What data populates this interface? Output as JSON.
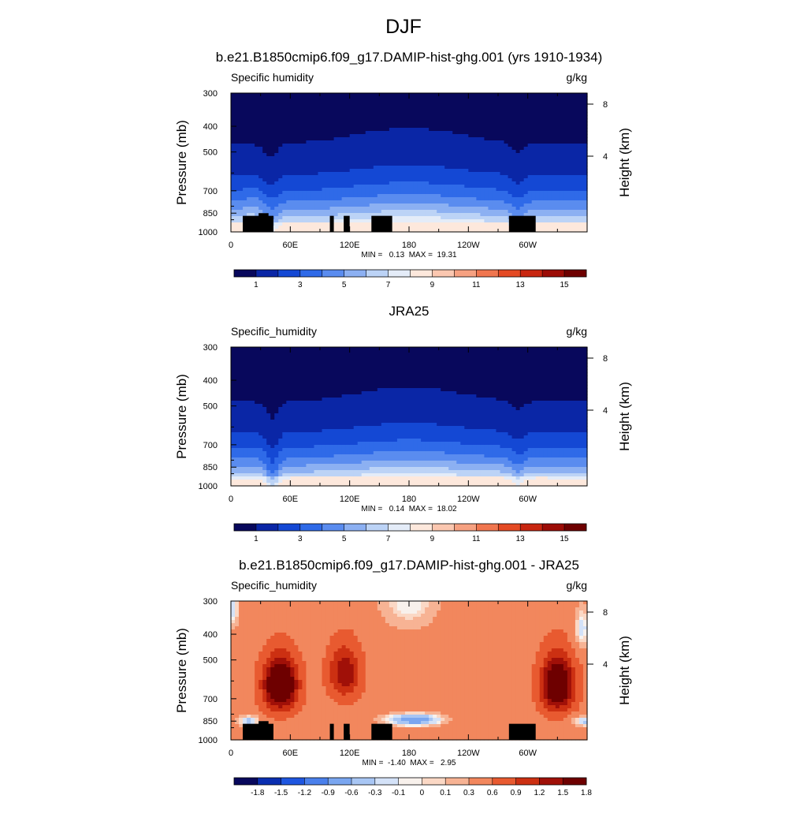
{
  "figure": {
    "title": "DJF"
  },
  "colors": {
    "qv_palette": [
      "#08085c",
      "#0a26a6",
      "#1448d4",
      "#2f6ae8",
      "#5a8cef",
      "#8cb0f2",
      "#bcd3f6",
      "#e4ecf8",
      "#fde8dc",
      "#fbc7b0",
      "#f6a181",
      "#f0764f",
      "#e44a24",
      "#c82610",
      "#9c0c06",
      "#6e0000"
    ],
    "diff_palette": [
      "#08085c",
      "#0a2eb0",
      "#1e56e0",
      "#4a80ec",
      "#7aa6f0",
      "#a8c6f4",
      "#d4e2f8",
      "#f8f1ec",
      "#fbd8c5",
      "#f7b394",
      "#f2875d",
      "#e85a30",
      "#cc3012",
      "#a01008",
      "#6e0000"
    ]
  },
  "chart_data": [
    {
      "type": "heatmap",
      "panel": "model",
      "title": "b.e21.B1850cmip6.f09_g17.DAMIP-hist-ghg.001 (yrs 1910-1934)",
      "left_label": "Specific humidity",
      "units": "g/kg",
      "ylabel": "Pressure (mb)",
      "ylabel_right": "Height (km)",
      "yticks": [
        "300",
        "400",
        "500",
        "700",
        "850",
        "1000"
      ],
      "ytick_values": [
        300,
        400,
        500,
        700,
        850,
        1000
      ],
      "yticks_right": [
        "8",
        "4"
      ],
      "xticks": [
        "0",
        "60E",
        "120E",
        "180",
        "120W",
        "60W"
      ],
      "xtick_values": [
        0,
        60,
        120,
        180,
        240,
        300
      ],
      "ylim": [
        1000,
        300
      ],
      "xlim": [
        0,
        360
      ],
      "stats_text": "MIN =   0.13  MAX =  19.31",
      "min": 0.13,
      "max": 19.31,
      "colorbar_labels": [
        "1",
        "3",
        "5",
        "7",
        "9",
        "11",
        "13",
        "15"
      ],
      "colorbar_values": [
        1,
        3,
        5,
        7,
        9,
        11,
        13,
        15
      ],
      "topography": [
        [
          12,
          870,
          43
        ],
        [
          28,
          850,
          38
        ],
        [
          100,
          870,
          104
        ],
        [
          114,
          870,
          120
        ],
        [
          142,
          870,
          163
        ],
        [
          281,
          870,
          308
        ]
      ]
    },
    {
      "type": "heatmap",
      "panel": "obs",
      "title": "JRA25",
      "left_label": "Specific_humidity",
      "units": "g/kg",
      "ylabel": "Pressure (mb)",
      "ylabel_right": "Height (km)",
      "yticks": [
        "300",
        "400",
        "500",
        "700",
        "850",
        "1000"
      ],
      "ytick_values": [
        300,
        400,
        500,
        700,
        850,
        1000
      ],
      "yticks_right": [
        "8",
        "4"
      ],
      "xticks": [
        "0",
        "60E",
        "120E",
        "180",
        "120W",
        "60W"
      ],
      "xtick_values": [
        0,
        60,
        120,
        180,
        240,
        300
      ],
      "ylim": [
        1000,
        300
      ],
      "xlim": [
        0,
        360
      ],
      "stats_text": "MIN =   0.14  MAX =  18.02",
      "min": 0.14,
      "max": 18.02,
      "colorbar_labels": [
        "1",
        "3",
        "5",
        "7",
        "9",
        "11",
        "13",
        "15"
      ],
      "colorbar_values": [
        1,
        3,
        5,
        7,
        9,
        11,
        13,
        15
      ]
    },
    {
      "type": "heatmap",
      "panel": "difference",
      "title": "b.e21.B1850cmip6.f09_g17.DAMIP-hist-ghg.001 - JRA25",
      "left_label": "Specific_humidity",
      "units": "g/kg",
      "ylabel": "Pressure (mb)",
      "ylabel_right": "Height (km)",
      "yticks": [
        "300",
        "400",
        "500",
        "700",
        "850",
        "1000"
      ],
      "ytick_values": [
        300,
        400,
        500,
        700,
        850,
        1000
      ],
      "yticks_right": [
        "8",
        "4"
      ],
      "xticks": [
        "0",
        "60E",
        "120E",
        "180",
        "120W",
        "60W"
      ],
      "xtick_values": [
        0,
        60,
        120,
        180,
        240,
        300
      ],
      "ylim": [
        1000,
        300
      ],
      "xlim": [
        0,
        360
      ],
      "stats_text": "MIN =  -1.40  MAX =   2.95",
      "min": -1.4,
      "max": 2.95,
      "colorbar_labels": [
        "-1.8",
        "-1.5",
        "-1.2",
        "-0.9",
        "-0.6",
        "-0.3",
        "-0.1",
        "0",
        "0.1",
        "0.3",
        "0.6",
        "0.9",
        "1.2",
        "1.5",
        "1.8"
      ],
      "colorbar_values": [
        -1.8,
        -1.5,
        -1.2,
        -0.9,
        -0.6,
        -0.3,
        -0.1,
        0,
        0.1,
        0.3,
        0.6,
        0.9,
        1.2,
        1.5,
        1.8
      ],
      "topography": [
        [
          12,
          870,
          43
        ],
        [
          28,
          850,
          38
        ],
        [
          100,
          870,
          104
        ],
        [
          114,
          870,
          120
        ],
        [
          142,
          870,
          163
        ],
        [
          281,
          870,
          308
        ]
      ]
    }
  ]
}
